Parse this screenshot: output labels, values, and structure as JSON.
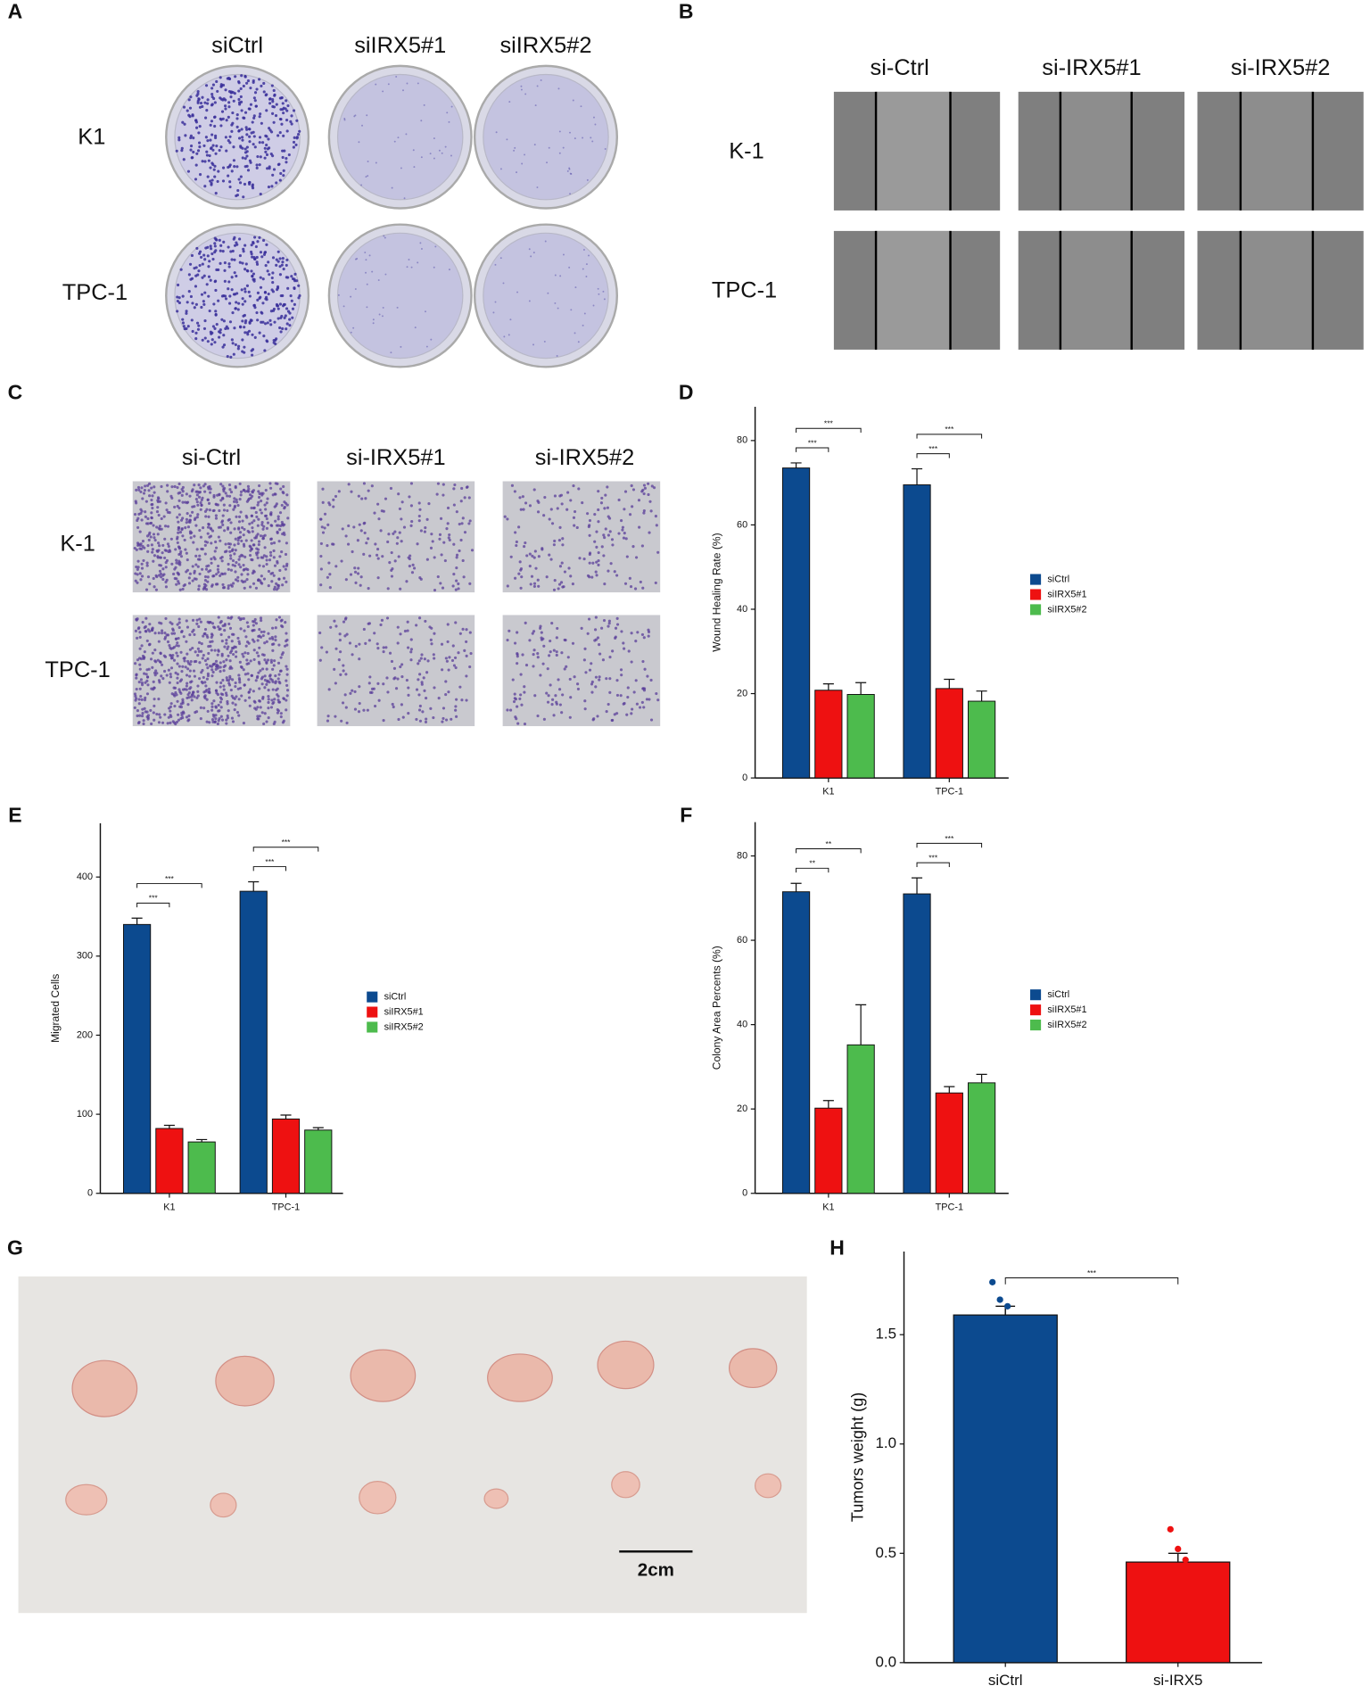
{
  "panels": [
    {
      "letter": "A",
      "columns": [
        "siCtrl",
        "siIRX5#1",
        "siIRX5#2"
      ],
      "rows": [
        "K1",
        "TPC-1"
      ]
    },
    {
      "letter": "B",
      "columns": [
        "si-Ctrl",
        "si-IRX5#1",
        "si-IRX5#2"
      ],
      "rows": [
        "K-1",
        "TPC-1"
      ]
    },
    {
      "letter": "C",
      "columns": [
        "si-Ctrl",
        "si-IRX5#1",
        "si-IRX5#2"
      ],
      "rows": [
        "K-1",
        "TPC-1"
      ]
    },
    {
      "letter": "G",
      "scale_bar": "2cm"
    }
  ],
  "chart_data": [
    {
      "type": "bar",
      "panel": "D",
      "ylabel": "Wound Healing Rate (%)",
      "categories": [
        "K1",
        "TPC-1"
      ],
      "series": [
        {
          "name": "siCtrl",
          "color": "#0c4a8f",
          "values": [
            73.5,
            69.5
          ],
          "errors": [
            1.2,
            3.8
          ]
        },
        {
          "name": "siIRX5#1",
          "color": "#ee1111",
          "values": [
            20.8,
            21.2
          ],
          "errors": [
            1.5,
            2.2
          ]
        },
        {
          "name": "siIRX5#2",
          "color": "#4dbb4d",
          "values": [
            19.8,
            18.2
          ],
          "errors": [
            2.8,
            2.4
          ]
        }
      ],
      "ylim": [
        0,
        88
      ],
      "yticks": [
        0,
        20,
        40,
        60,
        80
      ],
      "significance": [
        [
          "***",
          "***"
        ],
        [
          "***",
          "***"
        ]
      ]
    },
    {
      "type": "bar",
      "panel": "E",
      "ylabel": "Migrated Cells",
      "categories": [
        "K1",
        "TPC-1"
      ],
      "series": [
        {
          "name": "siCtrl",
          "color": "#0c4a8f",
          "values": [
            340,
            382
          ],
          "errors": [
            8,
            12
          ]
        },
        {
          "name": "siIRX5#1",
          "color": "#ee1111",
          "values": [
            82,
            94
          ],
          "errors": [
            4,
            5
          ]
        },
        {
          "name": "siIRX5#2",
          "color": "#4dbb4d",
          "values": [
            65,
            80
          ],
          "errors": [
            3,
            3
          ]
        }
      ],
      "ylim": [
        0,
        468
      ],
      "yticks": [
        0,
        100,
        200,
        300,
        400
      ],
      "significance": [
        [
          "***",
          "***"
        ],
        [
          "***",
          "***"
        ]
      ]
    },
    {
      "type": "bar",
      "panel": "F",
      "ylabel": "Colony Area Percents (%)",
      "categories": [
        "K1",
        "TPC-1"
      ],
      "series": [
        {
          "name": "siCtrl",
          "color": "#0c4a8f",
          "values": [
            71.5,
            71
          ],
          "errors": [
            2,
            3.8
          ]
        },
        {
          "name": "siIRX5#1",
          "color": "#ee1111",
          "values": [
            20.2,
            23.8
          ],
          "errors": [
            1.8,
            1.5
          ]
        },
        {
          "name": "siIRX5#2",
          "color": "#4dbb4d",
          "values": [
            35.2,
            26.2
          ],
          "errors": [
            9.5,
            2
          ]
        }
      ],
      "ylim": [
        0,
        88
      ],
      "yticks": [
        0,
        20,
        40,
        60,
        80
      ],
      "significance": [
        [
          "**",
          "**"
        ],
        [
          "***",
          "***"
        ]
      ]
    },
    {
      "type": "dotbar",
      "panel": "H",
      "ylabel": "Tumors weight (g)",
      "categories": [
        "siCtrl",
        "si-IRX5"
      ],
      "colors": [
        "#0c4a8f",
        "#ee1111"
      ],
      "values": [
        1.59,
        0.46
      ],
      "errors": [
        0.04,
        0.04
      ],
      "points": [
        [
          1.74,
          1.66,
          1.63
        ],
        [
          0.61,
          0.52,
          0.47
        ]
      ],
      "ylim": [
        0,
        1.88
      ],
      "yticks": [
        {
          "value": 0,
          "label": "0.0"
        },
        0.5,
        {
          "value": 1,
          "label": "1.0"
        },
        1.5
      ],
      "significance": "***"
    }
  ]
}
